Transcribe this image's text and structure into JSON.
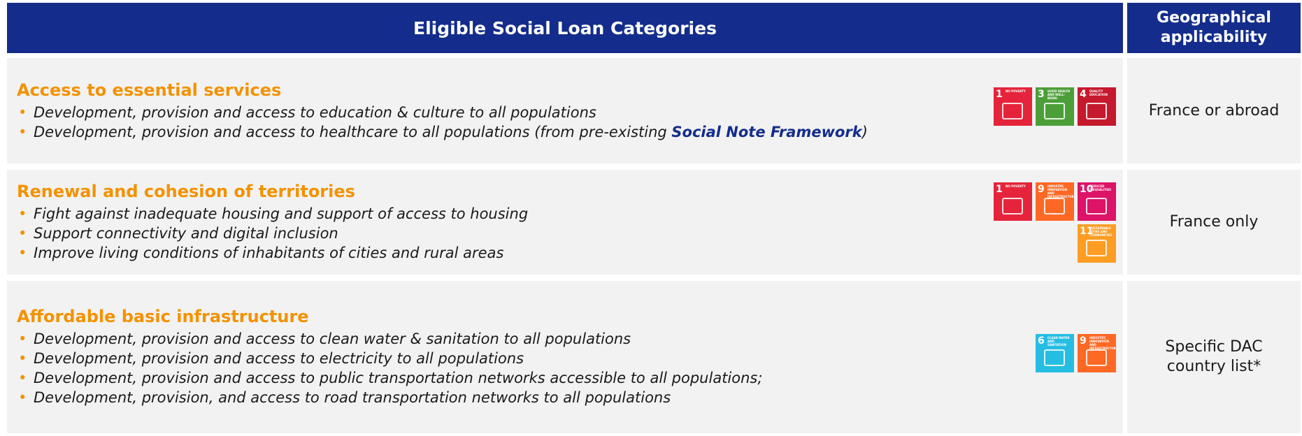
{
  "header": {
    "categories_title": "Eligible Social Loan Categories",
    "geography_title": "Geographical applicability"
  },
  "rows": [
    {
      "title": "Access to essential services",
      "bullets": [
        [
          {
            "text": "Development, provision and access to education & culture to all populations"
          }
        ],
        [
          {
            "text": "Development, provision and access to healthcare to all populations (from pre-existing "
          },
          {
            "text": "Social Note Framework",
            "bold": true
          },
          {
            "text": ")"
          }
        ]
      ],
      "sdgs": [
        {
          "number": "1",
          "label": "NO POVERTY",
          "color": "#e5243b"
        },
        {
          "number": "3",
          "label": "GOOD HEALTH AND WELL-BEING",
          "color": "#4c9f38"
        },
        {
          "number": "4",
          "label": "QUALITY EDUCATION",
          "color": "#c5192d"
        }
      ],
      "geography": "France or abroad"
    },
    {
      "title": "Renewal and cohesion of territories",
      "bullets": [
        [
          {
            "text": "Fight against inadequate housing and support of access to housing"
          }
        ],
        [
          {
            "text": "Support connectivity and digital inclusion"
          }
        ],
        [
          {
            "text": "Improve living conditions of inhabitants of cities and rural areas"
          }
        ]
      ],
      "sdgs": [
        {
          "number": "1",
          "label": "NO POVERTY",
          "color": "#e5243b"
        },
        {
          "number": "9",
          "label": "INDUSTRY, INNOVATION AND INFRASTRUCTURE",
          "color": "#fd6925"
        },
        {
          "number": "10",
          "label": "REDUCED INEQUALITIES",
          "color": "#dd1367"
        },
        {
          "number": "11",
          "label": "SUSTAINABLE CITIES AND COMMUNITIES",
          "color": "#fd9d24"
        }
      ],
      "geography": "France only"
    },
    {
      "title": "Affordable basic infrastructure",
      "bullets": [
        [
          {
            "text": "Development, provision and access to clean water & sanitation to all populations"
          }
        ],
        [
          {
            "text": "Development, provision and access to electricity to all populations"
          }
        ],
        [
          {
            "text": "Development, provision and access to public transportation networks accessible to all populations;"
          }
        ],
        [
          {
            "text": "Development, provision, and access to road transportation networks to all populations"
          }
        ]
      ],
      "sdgs": [
        {
          "number": "6",
          "label": "CLEAN WATER AND SANITATION",
          "color": "#26bde2"
        },
        {
          "number": "9",
          "label": "INDUSTRY, INNOVATION AND INFRASTRUCTURE",
          "color": "#fd6925"
        }
      ],
      "geography": "Specific DAC country list*"
    }
  ]
}
